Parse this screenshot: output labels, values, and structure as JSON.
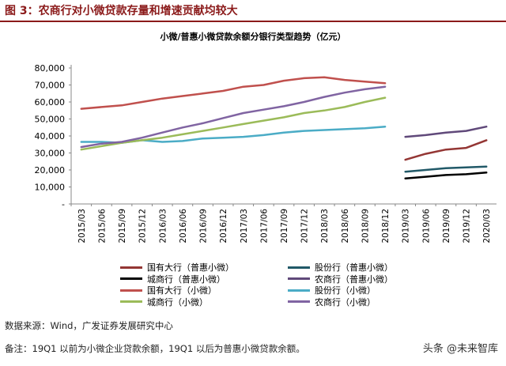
{
  "figure": {
    "title": "图 3：农商行对小微贷款存量和增速贡献均较大"
  },
  "chart_data": {
    "type": "line",
    "title": "小微/普惠小微贷款余额分银行类型趋势（亿元）",
    "xlabel": "",
    "ylabel": "",
    "ylim": [
      0,
      80000
    ],
    "yticks": [
      "-",
      "10,000",
      "20,000",
      "30,000",
      "40,000",
      "50,000",
      "60,000",
      "70,000",
      "80,000"
    ],
    "categories": [
      "2015/03",
      "2015/06",
      "2015/09",
      "2015/12",
      "2016/03",
      "2016/06",
      "2016/09",
      "2016/12",
      "2017/03",
      "2017/06",
      "2017/09",
      "2017/12",
      "2018/03",
      "2018/06",
      "2018/09",
      "2018/12",
      "2019/03",
      "2019/06",
      "2019/09",
      "2019/12",
      "2020/03"
    ],
    "grid": false,
    "series": [
      {
        "name": "国有大行（小微）",
        "color": "#c0504d",
        "values": [
          56000,
          57000,
          58000,
          60000,
          62000,
          63500,
          65000,
          66500,
          69000,
          70000,
          72500,
          74000,
          74500,
          73000,
          72000,
          71000,
          null,
          null,
          null,
          null,
          null
        ]
      },
      {
        "name": "股份行（小微）",
        "color": "#4bacc6",
        "values": [
          36500,
          36500,
          36000,
          37500,
          36500,
          37000,
          38500,
          39000,
          39500,
          40500,
          42000,
          43000,
          43500,
          44000,
          44500,
          45500,
          null,
          null,
          null,
          null,
          null
        ]
      },
      {
        "name": "城商行（小微）",
        "color": "#9bbb59",
        "values": [
          32000,
          34000,
          36000,
          37500,
          39000,
          41000,
          43000,
          45000,
          47000,
          49000,
          51000,
          53500,
          55000,
          57000,
          60000,
          62500,
          null,
          null,
          null,
          null,
          null
        ]
      },
      {
        "name": "农商行（小微）",
        "color": "#8064a2",
        "values": [
          33500,
          35500,
          36500,
          39000,
          42000,
          45000,
          47500,
          50500,
          53500,
          55500,
          57500,
          60000,
          63000,
          65500,
          67500,
          69000,
          null,
          null,
          null,
          null,
          null
        ]
      },
      {
        "name": "国有大行（普惠小微）",
        "color": "#943634",
        "values": [
          null,
          null,
          null,
          null,
          null,
          null,
          null,
          null,
          null,
          null,
          null,
          null,
          null,
          null,
          null,
          null,
          26000,
          29500,
          32000,
          33000,
          37500
        ]
      },
      {
        "name": "股份行（普惠小微）",
        "color": "#215968",
        "values": [
          null,
          null,
          null,
          null,
          null,
          null,
          null,
          null,
          null,
          null,
          null,
          null,
          null,
          null,
          null,
          null,
          19000,
          20000,
          21000,
          21500,
          22000
        ]
      },
      {
        "name": "城商行（普惠小微）",
        "color": "#000000",
        "values": [
          null,
          null,
          null,
          null,
          null,
          null,
          null,
          null,
          null,
          null,
          null,
          null,
          null,
          null,
          null,
          null,
          15000,
          16000,
          17000,
          17500,
          18500
        ]
      },
      {
        "name": "农商行（普惠小微）",
        "color": "#60497a",
        "values": [
          null,
          null,
          null,
          null,
          null,
          null,
          null,
          null,
          null,
          null,
          null,
          null,
          null,
          null,
          null,
          null,
          39500,
          40500,
          42000,
          43000,
          45500
        ]
      }
    ],
    "legend": {
      "position": "bottom",
      "items": [
        {
          "label": "国有大行（普惠小微）",
          "color": "#943634"
        },
        {
          "label": "股份行（普惠小微）",
          "color": "#215968"
        },
        {
          "label": "城商行（普惠小微）",
          "color": "#000000"
        },
        {
          "label": "农商行（普惠小微）",
          "color": "#60497a"
        },
        {
          "label": "国有大行（小微）",
          "color": "#c0504d"
        },
        {
          "label": "股份行（小微）",
          "color": "#4bacc6"
        },
        {
          "label": "城商行（小微）",
          "color": "#9bbb59"
        },
        {
          "label": "农商行（小微）",
          "color": "#8064a2"
        }
      ]
    }
  },
  "footer": {
    "source": "数据来源：Wind，广发证券发展研究中心",
    "note": "备注：19Q1 以前为小微企业贷款余额，19Q1 以后为普惠小微贷款余额。",
    "watermark": "头条 @未来智库"
  }
}
